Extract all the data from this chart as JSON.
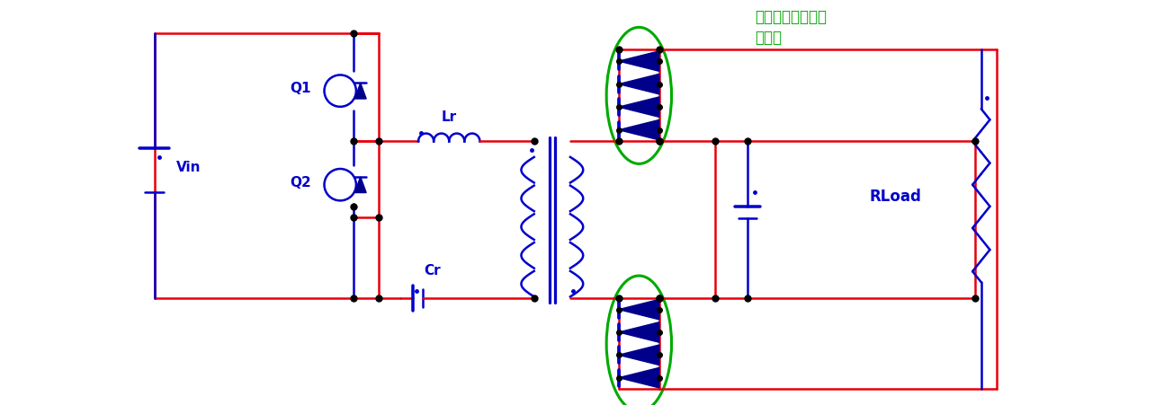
{
  "fig_width": 12.84,
  "fig_height": 4.52,
  "dpi": 100,
  "bg_color": "#ffffff",
  "red": "#e8000a",
  "blue": "#0000cc",
  "dark_blue": "#00008B",
  "green": "#00aa00",
  "black": "#000000",
  "lw": 1.8,
  "annotation_text": "二次側デバイスの\n並列化",
  "xlim": [
    0,
    12.84
  ],
  "ylim": [
    0,
    4.52
  ]
}
